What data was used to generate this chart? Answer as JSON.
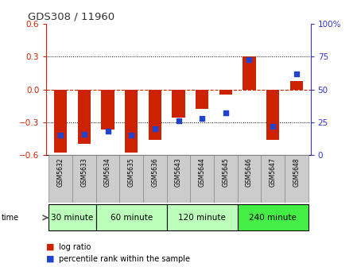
{
  "title": "GDS308 / 11960",
  "samples": [
    "GSM5632",
    "GSM5633",
    "GSM5634",
    "GSM5635",
    "GSM5636",
    "GSM5643",
    "GSM5644",
    "GSM5645",
    "GSM5646",
    "GSM5647",
    "GSM5648"
  ],
  "log_ratio": [
    -0.58,
    -0.5,
    -0.37,
    -0.58,
    -0.46,
    -0.26,
    -0.18,
    -0.05,
    0.3,
    -0.46,
    0.08
  ],
  "percentile_rank": [
    15,
    16,
    18,
    15,
    20,
    26,
    28,
    32,
    73,
    22,
    62
  ],
  "ylim_left": [
    -0.6,
    0.6
  ],
  "ylim_right": [
    0,
    100
  ],
  "yticks_left": [
    -0.6,
    -0.3,
    0.0,
    0.3,
    0.6
  ],
  "yticks_right": [
    0,
    25,
    50,
    75,
    100
  ],
  "ytick_right_labels": [
    "0",
    "25",
    "50",
    "75",
    "100%"
  ],
  "bar_color": "#cc2200",
  "dot_color": "#2244cc",
  "zero_line_color": "#cc2200",
  "left_axis_color": "#cc2200",
  "right_axis_color": "#3333cc",
  "title_color": "#333333",
  "time_group_labels": [
    "30 minute",
    "60 minute",
    "120 minute",
    "240 minute"
  ],
  "time_group_starts": [
    0,
    2,
    5,
    8
  ],
  "time_group_ends": [
    1,
    4,
    7,
    10
  ],
  "time_group_colors": [
    "#bbffbb",
    "#bbffbb",
    "#bbffbb",
    "#44ee44"
  ],
  "sample_bg_color": "#cccccc",
  "bar_width": 0.55
}
